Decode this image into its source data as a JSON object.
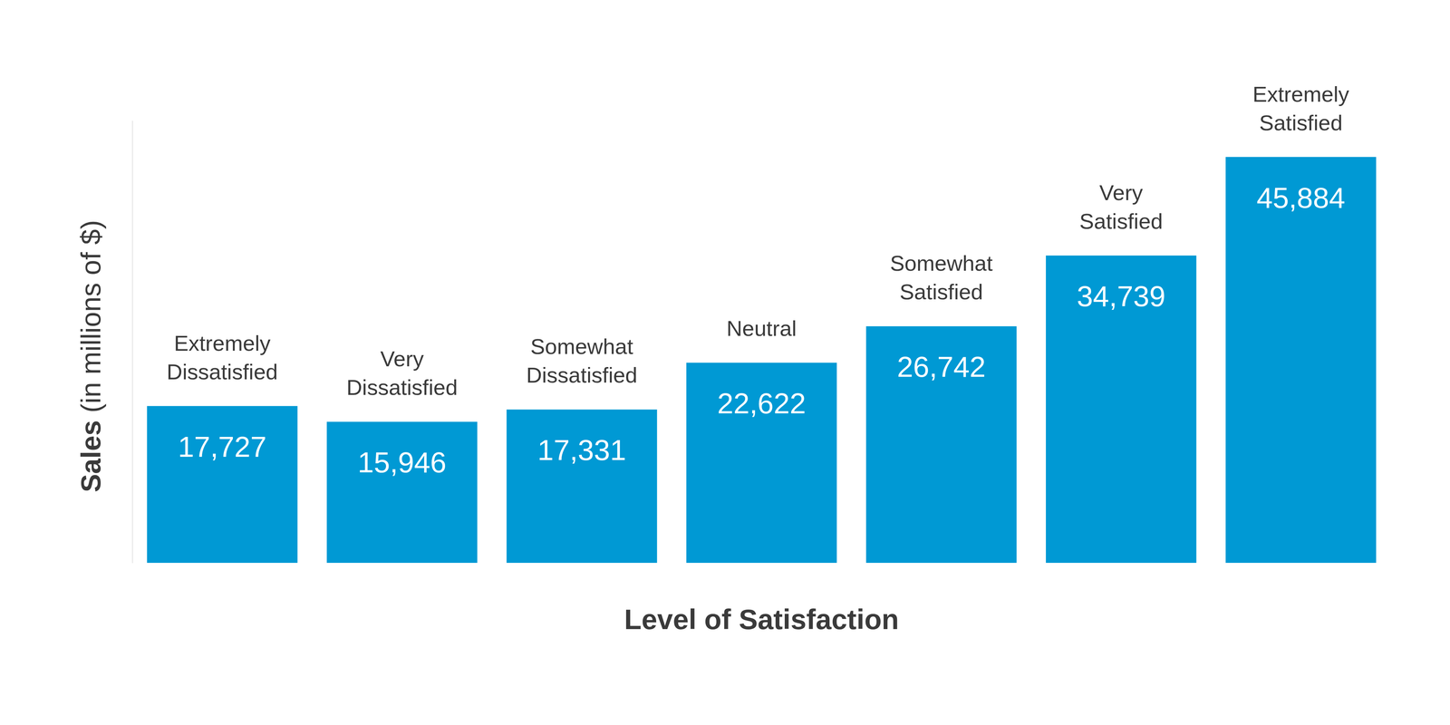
{
  "chart_data": {
    "type": "bar",
    "x_label": "Level of Satisfaction",
    "y_label": "Sales (in millions of $)",
    "categories": [
      "Extremely Dissatisfied",
      "Very Dissatisfied",
      "Somewhat Dissatisfied",
      "Neutral",
      "Somewhat Satisfied",
      "Very Satisfied",
      "Extremely Satisfied"
    ],
    "values": [
      17727,
      15946,
      17331,
      22622,
      26742,
      34739,
      45884
    ],
    "value_labels": [
      "17,727",
      "15,946",
      "17,331",
      "22,622",
      "26,742",
      "34,739",
      "45,884"
    ],
    "color": "#0099d4",
    "ylim": [
      0,
      50000
    ],
    "data_labels": true,
    "tick_labels": false
  }
}
